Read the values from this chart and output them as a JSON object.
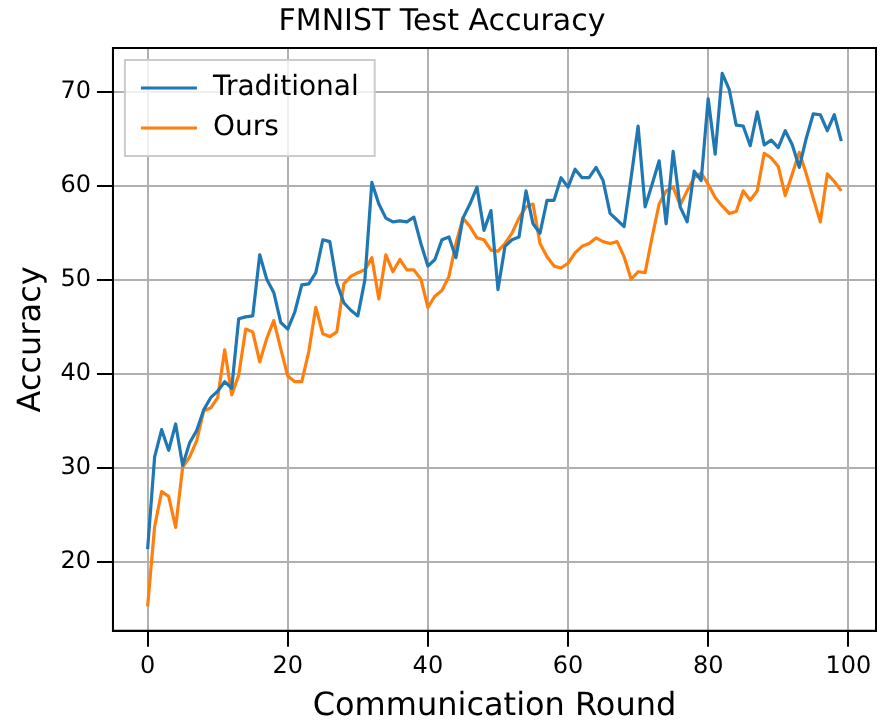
{
  "chart_data": {
    "type": "line",
    "title": "FMNIST Test Accuracy",
    "xlabel": "Communication Round",
    "ylabel": "Accuracy",
    "x": [
      0,
      1,
      2,
      3,
      4,
      5,
      6,
      7,
      8,
      9,
      10,
      11,
      12,
      13,
      14,
      15,
      16,
      17,
      18,
      19,
      20,
      21,
      22,
      23,
      24,
      25,
      26,
      27,
      28,
      29,
      30,
      31,
      32,
      33,
      34,
      35,
      36,
      37,
      38,
      39,
      40,
      41,
      42,
      43,
      44,
      45,
      46,
      47,
      48,
      49,
      50,
      51,
      52,
      53,
      54,
      55,
      56,
      57,
      58,
      59,
      60,
      61,
      62,
      63,
      64,
      65,
      66,
      67,
      68,
      69,
      70,
      71,
      72,
      73,
      74,
      75,
      76,
      77,
      78,
      79,
      80,
      81,
      82,
      83,
      84,
      85,
      86,
      87,
      88,
      89,
      90,
      91,
      92,
      93,
      94,
      95,
      96,
      97,
      98,
      99
    ],
    "series": [
      {
        "name": "Traditional",
        "color": "#1f77b4",
        "values": [
          21.4,
          31.2,
          34.1,
          31.9,
          34.7,
          30.3,
          32.7,
          34.0,
          36.2,
          37.5,
          38.2,
          39.2,
          38.5,
          45.9,
          46.1,
          46.2,
          52.7,
          50.1,
          48.7,
          45.5,
          44.8,
          46.6,
          49.5,
          49.6,
          50.8,
          54.3,
          54.1,
          49.7,
          47.6,
          46.8,
          46.2,
          50.0,
          60.4,
          58.1,
          56.6,
          56.2,
          56.3,
          56.2,
          56.7,
          53.9,
          51.5,
          52.2,
          54.3,
          54.6,
          52.4,
          56.6,
          58.1,
          59.9,
          55.3,
          57.4,
          49.0,
          53.6,
          54.3,
          54.6,
          59.5,
          56.0,
          55.0,
          58.5,
          58.5,
          60.9,
          59.9,
          61.8,
          60.9,
          60.9,
          62.0,
          60.6,
          57.1,
          56.4,
          55.7,
          60.9,
          66.4,
          57.8,
          60.2,
          62.7,
          56.0,
          63.7,
          57.8,
          56.2,
          61.6,
          60.6,
          69.3,
          63.4,
          72.0,
          70.3,
          66.5,
          66.4,
          64.3,
          67.9,
          64.4,
          64.9,
          64.1,
          65.9,
          64.4,
          62.0,
          65.1,
          67.7,
          67.6,
          65.9,
          67.6,
          64.8
        ]
      },
      {
        "name": "Ours",
        "color": "#ff7f0e",
        "values": [
          15.3,
          23.8,
          27.5,
          27.0,
          23.7,
          30.1,
          31.2,
          32.9,
          36.1,
          36.4,
          37.5,
          42.6,
          37.8,
          39.9,
          44.8,
          44.5,
          41.3,
          43.8,
          45.7,
          42.7,
          39.8,
          39.2,
          39.2,
          42.4,
          47.1,
          44.3,
          44.0,
          44.5,
          49.6,
          50.4,
          50.8,
          51.1,
          52.4,
          48.0,
          52.7,
          50.9,
          52.2,
          51.1,
          51.1,
          50.1,
          47.1,
          48.3,
          48.9,
          50.4,
          53.9,
          56.6,
          55.7,
          54.5,
          54.3,
          53.2,
          53.1,
          53.9,
          55.0,
          56.6,
          57.8,
          58.1,
          53.9,
          52.5,
          51.5,
          51.3,
          51.8,
          52.9,
          53.6,
          53.9,
          54.5,
          54.1,
          53.9,
          54.1,
          52.5,
          50.1,
          50.9,
          50.8,
          54.6,
          58.1,
          59.5,
          59.9,
          58.0,
          59.5,
          60.9,
          61.4,
          60.2,
          58.8,
          57.9,
          57.1,
          57.3,
          59.5,
          58.5,
          59.5,
          63.5,
          63.0,
          62.1,
          59.0,
          61.3,
          63.6,
          61.3,
          58.7,
          56.2,
          61.3,
          60.5,
          59.5
        ]
      }
    ],
    "xlim": [
      -4.95,
      103.95
    ],
    "ylim": [
      12.7,
      74.7
    ],
    "xticks": [
      0,
      20,
      40,
      60,
      80,
      100
    ],
    "yticks": [
      20,
      30,
      40,
      50,
      60,
      70
    ],
    "grid": true,
    "legend": "top left"
  }
}
